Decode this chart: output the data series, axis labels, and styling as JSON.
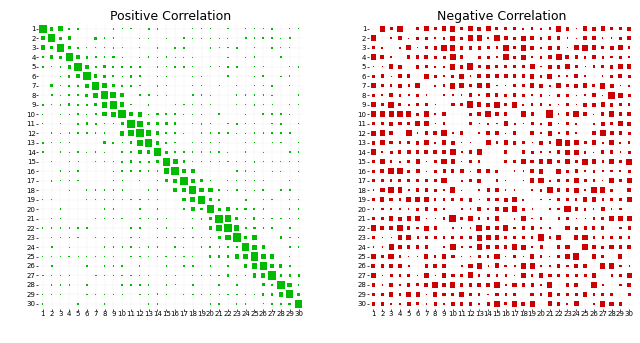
{
  "title_left": "Positive Correlation",
  "title_right": "Negative Correlation",
  "n": 30,
  "color_pos": "#00BB00",
  "color_neg": "#CC0000",
  "background": "#FFFFFF",
  "grid_color": "#CCCCCC",
  "tick_fontsize": 5.0,
  "title_fontsize": 9,
  "figsize": [
    6.4,
    3.43
  ],
  "dpi": 100
}
